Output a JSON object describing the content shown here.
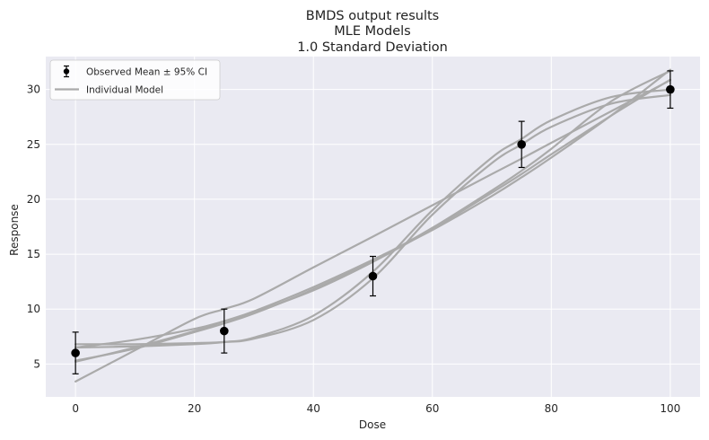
{
  "chart_data": {
    "type": "line",
    "title": [
      "BMDS output results",
      "MLE Models",
      "1.0 Standard Deviation"
    ],
    "xlabel": "Dose",
    "ylabel": "Response",
    "xlim": [
      -5,
      105
    ],
    "ylim": [
      2,
      33
    ],
    "xticks": [
      0,
      20,
      40,
      60,
      80,
      100
    ],
    "yticks": [
      5,
      10,
      15,
      20,
      25,
      30
    ],
    "grid": true,
    "legend_position": "top-left",
    "legend": [
      "Observed Mean ± 95% CI",
      "Individual Model"
    ],
    "observed": [
      {
        "dose": 0,
        "mean": 6.0,
        "lower": 4.1,
        "upper": 7.9
      },
      {
        "dose": 25,
        "mean": 8.0,
        "lower": 6.0,
        "upper": 10.0
      },
      {
        "dose": 50,
        "mean": 13.0,
        "lower": 11.2,
        "upper": 14.8
      },
      {
        "dose": 75,
        "mean": 25.0,
        "lower": 22.9,
        "upper": 27.1
      },
      {
        "dose": 100,
        "mean": 30.0,
        "lower": 28.3,
        "upper": 31.7
      }
    ],
    "series": [
      {
        "name": "Individual Model",
        "x": [
          0,
          10,
          20,
          25,
          30,
          40,
          50,
          60,
          70,
          75,
          80,
          90,
          100
        ],
        "y": [
          3.4,
          6.25,
          9.1,
          10.0,
          10.95,
          13.8,
          16.6,
          19.45,
          22.3,
          23.7,
          25.15,
          28.0,
          30.85
        ]
      },
      {
        "name": "Individual Model",
        "x": [
          0,
          10,
          20,
          25,
          30,
          40,
          50,
          60,
          70,
          75,
          80,
          90,
          100
        ],
        "y": [
          6.8,
          6.8,
          6.9,
          7.0,
          7.3,
          9.0,
          12.8,
          18.6,
          23.3,
          25.0,
          26.6,
          28.7,
          29.5
        ]
      },
      {
        "name": "Individual Model",
        "x": [
          0,
          10,
          20,
          25,
          30,
          40,
          50,
          60,
          70,
          75,
          80,
          90,
          100
        ],
        "y": [
          6.5,
          6.6,
          6.8,
          7.0,
          7.4,
          9.4,
          13.4,
          19.0,
          23.8,
          25.5,
          27.2,
          29.3,
          30.0
        ]
      },
      {
        "name": "Individual Model",
        "x": [
          0,
          10,
          20,
          25,
          30,
          40,
          50,
          60,
          70,
          75,
          80,
          90,
          100
        ],
        "y": [
          5.3,
          6.4,
          7.9,
          8.7,
          9.6,
          11.8,
          14.4,
          17.4,
          20.8,
          22.6,
          24.6,
          28.9,
          31.7
        ]
      },
      {
        "name": "Individual Model",
        "x": [
          0,
          10,
          20,
          25,
          30,
          40,
          50,
          60,
          70,
          75,
          80,
          90,
          100
        ],
        "y": [
          5.2,
          6.5,
          8.0,
          8.9,
          9.8,
          12.0,
          14.5,
          17.2,
          20.3,
          22.0,
          23.8,
          27.6,
          31.8
        ]
      },
      {
        "name": "Individual Model",
        "x": [
          0,
          10,
          20,
          25,
          30,
          40,
          50,
          60,
          70,
          75,
          80,
          90,
          100
        ],
        "y": [
          6.5,
          7.2,
          8.2,
          8.9,
          9.7,
          11.7,
          14.3,
          17.3,
          20.6,
          22.3,
          24.1,
          27.6,
          30.9
        ]
      }
    ],
    "colors": {
      "model_line": "#aaaaaa",
      "observed": "#000000",
      "plot_bg": "#eaeaf2",
      "grid": "#ffffff"
    }
  }
}
